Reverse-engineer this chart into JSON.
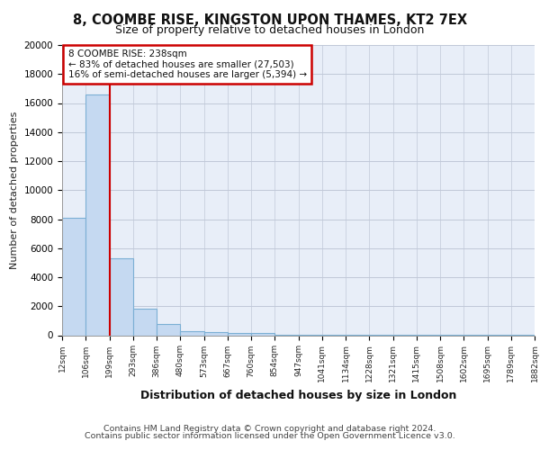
{
  "title1": "8, COOMBE RISE, KINGSTON UPON THAMES, KT2 7EX",
  "title2": "Size of property relative to detached houses in London",
  "xlabel": "Distribution of detached houses by size in London",
  "ylabel": "Number of detached properties",
  "bar_values": [
    8100,
    16600,
    5300,
    1800,
    750,
    300,
    200,
    150,
    130,
    30,
    20,
    15,
    12,
    10,
    8,
    7,
    6,
    5,
    4,
    3
  ],
  "bar_labels": [
    "12sqm",
    "106sqm",
    "199sqm",
    "293sqm",
    "386sqm",
    "480sqm",
    "573sqm",
    "667sqm",
    "760sqm",
    "854sqm",
    "947sqm",
    "1041sqm",
    "1134sqm",
    "1228sqm",
    "1321sqm",
    "1415sqm",
    "1508sqm",
    "1602sqm",
    "1695sqm",
    "1789sqm",
    "1882sqm"
  ],
  "bar_color": "#c5d9f1",
  "bar_edge_color": "#7bafd4",
  "vertical_line_x": 2.0,
  "annotation_line1": "8 COOMBE RISE: 238sqm",
  "annotation_line2": "← 83% of detached houses are smaller (27,503)",
  "annotation_line3": "16% of semi-detached houses are larger (5,394) →",
  "annotation_box_color": "#ffffff",
  "annotation_box_edge": "#cc0000",
  "vline_color": "#cc0000",
  "footer1": "Contains HM Land Registry data © Crown copyright and database right 2024.",
  "footer2": "Contains public sector information licensed under the Open Government Licence v3.0.",
  "background_color": "#e8eef8",
  "ylim": [
    0,
    20000
  ],
  "yticks": [
    0,
    2000,
    4000,
    6000,
    8000,
    10000,
    12000,
    14000,
    16000,
    18000,
    20000
  ]
}
